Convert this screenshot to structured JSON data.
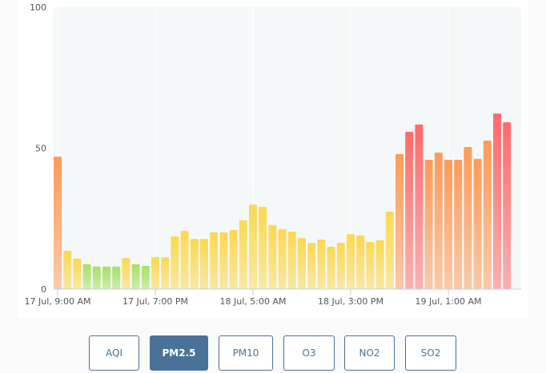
{
  "chart_data": {
    "type": "bar",
    "title": "",
    "xlabel": "",
    "ylabel": "",
    "ylim": [
      0,
      100
    ],
    "yticks": [
      "0",
      "50",
      "100"
    ],
    "xtick_labels": [
      "17 Jul, 9:00 AM",
      "17 Jul, 7:00 PM",
      "18 Jul, 5:00 AM",
      "18 Jul, 3:00 PM",
      "19 Jul, 1:00 AM"
    ],
    "x_start": "17 Jul, 9:00 AM",
    "x_interval": "1 hour",
    "values": [
      47,
      13.6,
      10.8,
      8.8,
      8,
      8,
      8,
      11,
      8.8,
      8.2,
      11.3,
      11.3,
      18.7,
      20.7,
      17.8,
      17.8,
      20.1,
      20.1,
      21,
      24.4,
      30,
      29.2,
      22.7,
      21.3,
      20.4,
      18.1,
      16.4,
      17.6,
      15,
      16.4,
      19.5,
      19,
      16.7,
      17.3,
      27.5,
      47.9,
      55.8,
      58.4,
      45.9,
      48.4,
      45.9,
      45.9,
      50.4,
      46.2,
      52.7,
      62.3,
      59.2
    ],
    "grid": true,
    "colors": {
      "good": "#a8e063",
      "moderate": "#fcd84f",
      "unhealthy_sensitive": "#ff9a57",
      "unhealthy": "#ff6a6a",
      "plot_bg": "#f4f8f9"
    }
  },
  "pollutant_tabs": [
    {
      "label": "AQI",
      "active": false
    },
    {
      "label": "PM2.5",
      "active": true
    },
    {
      "label": "PM10",
      "active": false
    },
    {
      "label": "O3",
      "active": false
    },
    {
      "label": "NO2",
      "active": false
    },
    {
      "label": "SO2",
      "active": false
    }
  ]
}
